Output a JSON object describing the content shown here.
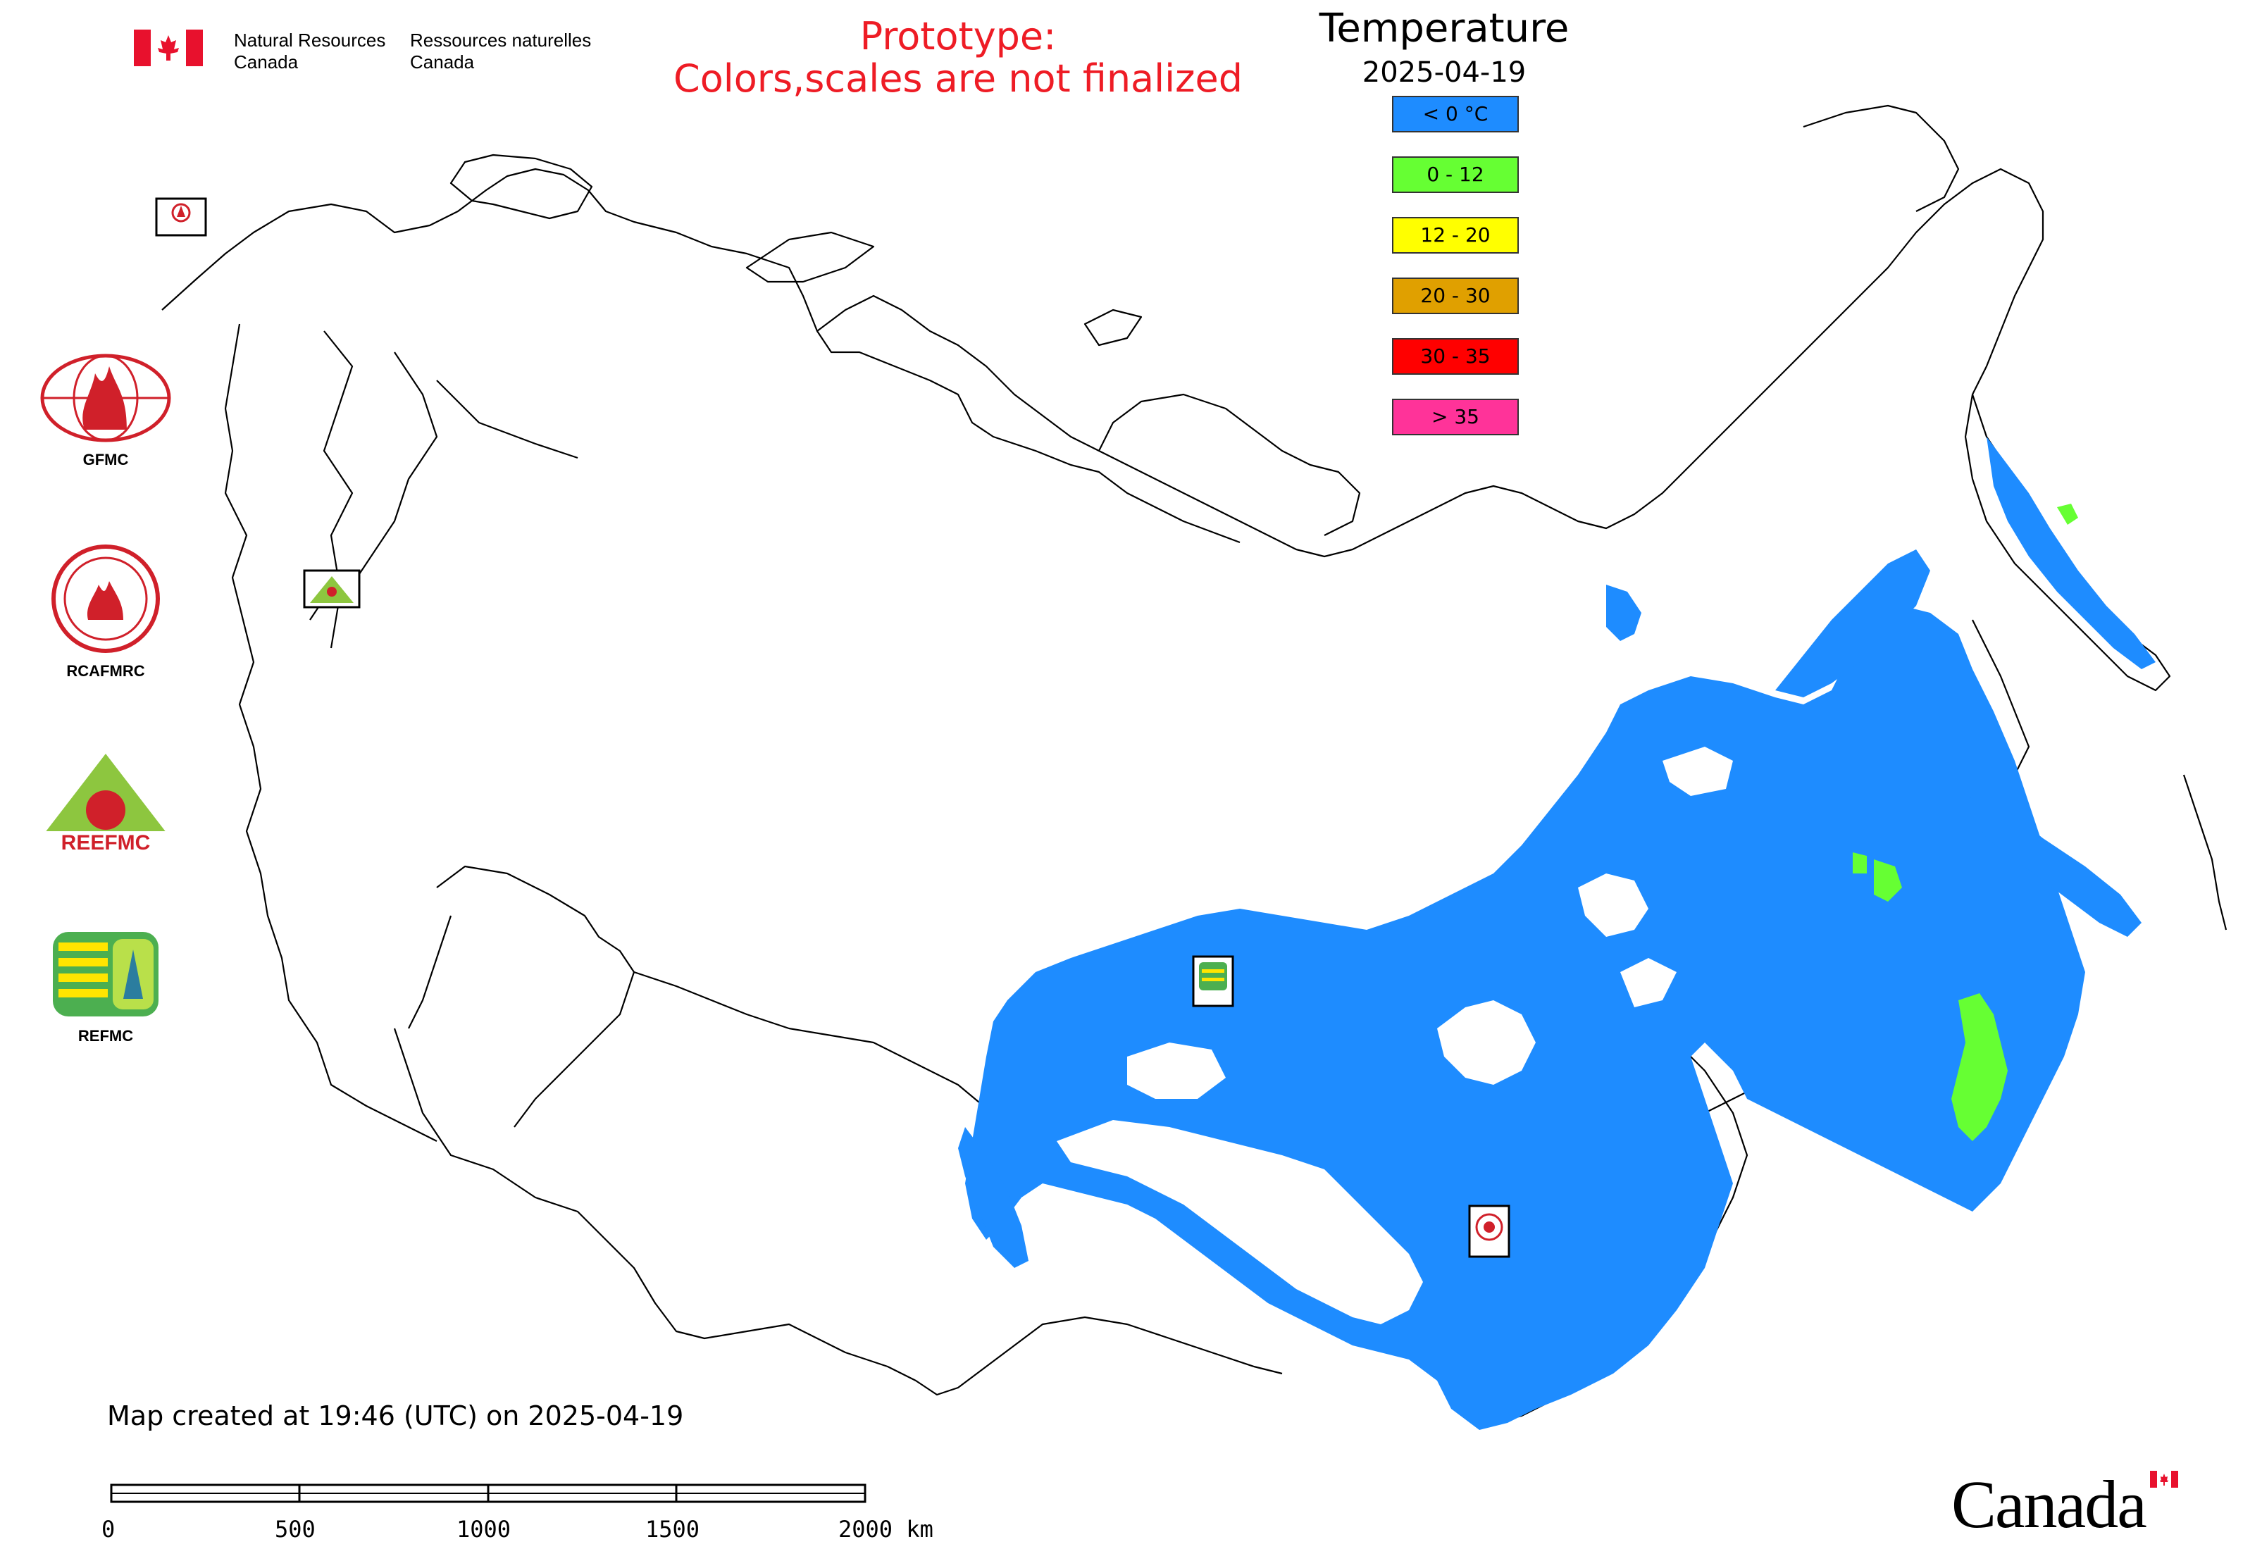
{
  "header": {
    "gov_en_line1": "Natural Resources",
    "gov_en_line2": "Canada",
    "gov_fr_line1": "Ressources naturelles",
    "gov_fr_line2": "Canada",
    "prototype_line1": "Prototype:",
    "prototype_line2": "Colors,scales are not finalized"
  },
  "legend": {
    "title": "Temperature",
    "date": "2025-04-19",
    "items": [
      {
        "label": "< 0 °C",
        "color": "#1e8cff"
      },
      {
        "label": "0 - 12",
        "color": "#66ff33"
      },
      {
        "label": "12 - 20",
        "color": "#ffff00"
      },
      {
        "label": "20 - 30",
        "color": "#e0a000"
      },
      {
        "label": "30 - 35",
        "color": "#ff0000"
      },
      {
        "label": "> 35",
        "color": "#ff3399"
      }
    ]
  },
  "agencies": [
    {
      "label": "GFMC",
      "icon": "gfmc-globe-flame-logo"
    },
    {
      "label": "RCAFMRC",
      "icon": "rcafmrc-seal-logo"
    },
    {
      "label": "",
      "icon": "reefmc-triangle-logo",
      "logo_text": "REEFMC"
    },
    {
      "label": "REFMC",
      "icon": "refmc-sigma-logo"
    }
  ],
  "map_markers": [
    {
      "name": "GFMC",
      "icon": "gfmc-marker-icon"
    },
    {
      "name": "REEFMC",
      "icon": "reefmc-marker-icon"
    },
    {
      "name": "REFMC",
      "icon": "refmc-marker-icon"
    },
    {
      "name": "RCAFMRC",
      "icon": "rcafmrc-marker-icon"
    }
  ],
  "footer": {
    "created": "Map created at 19:46 (UTC) on 2025-04-19"
  },
  "scalebar": {
    "ticks": [
      "0",
      "500",
      "1000",
      "1500",
      "2000 km"
    ]
  },
  "wordmark": "Canada"
}
